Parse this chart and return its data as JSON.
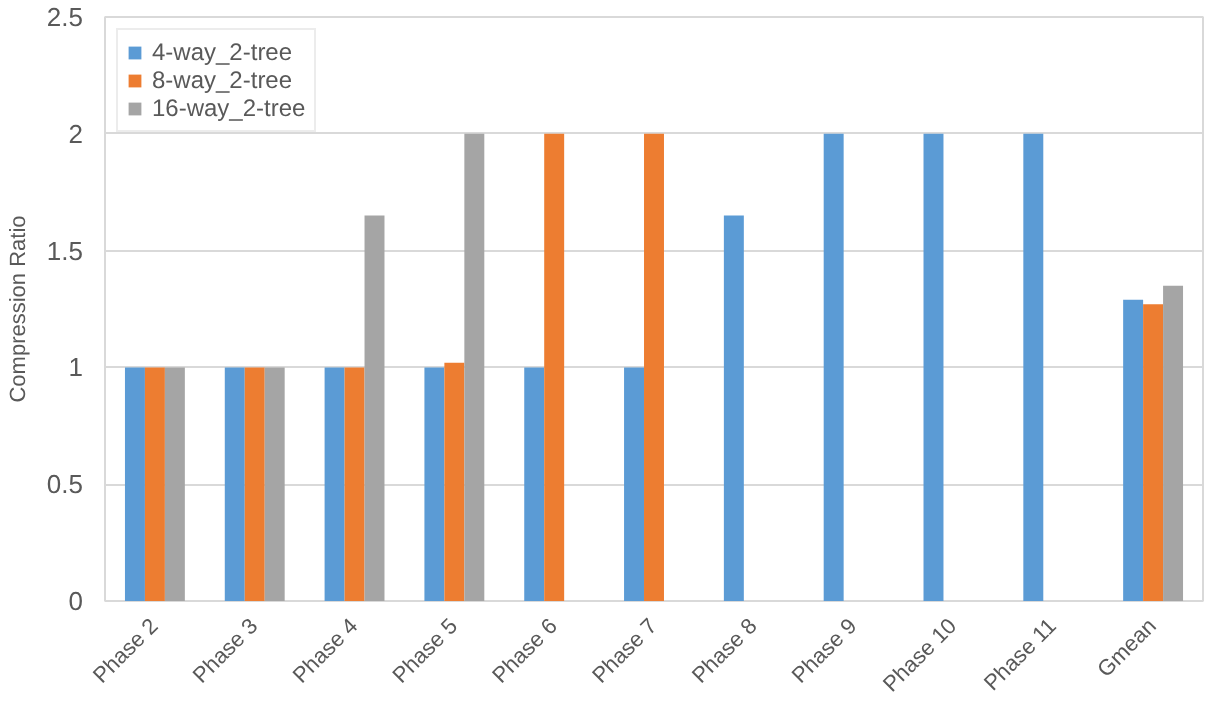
{
  "chart_data": {
    "type": "bar",
    "ylabel": "Compression Ratio",
    "categories": [
      "Phase 2",
      "Phase 3",
      "Phase 4",
      "Phase 5",
      "Phase 6",
      "Phase 7",
      "Phase 8",
      "Phase 9",
      "Phase 10",
      "Phase 11",
      "Gmean"
    ],
    "series": [
      {
        "name": "4-way_2-tree",
        "color": "#5b9bd5",
        "values": [
          1,
          1,
          1,
          1,
          1,
          1,
          1.65,
          2,
          2,
          2,
          1.29
        ]
      },
      {
        "name": "8-way_2-tree",
        "color": "#ed7d31",
        "values": [
          1,
          1,
          1,
          1.02,
          2,
          2,
          null,
          null,
          null,
          null,
          1.27
        ]
      },
      {
        "name": "16-way_2-tree",
        "color": "#a5a5a5",
        "values": [
          1,
          1,
          1.65,
          2,
          null,
          null,
          null,
          null,
          null,
          null,
          1.35
        ]
      }
    ],
    "ylim": [
      0,
      2.5
    ],
    "yticks": [
      0,
      0.5,
      1,
      1.5,
      2,
      2.5
    ],
    "grid": "y",
    "legend": "top left"
  }
}
